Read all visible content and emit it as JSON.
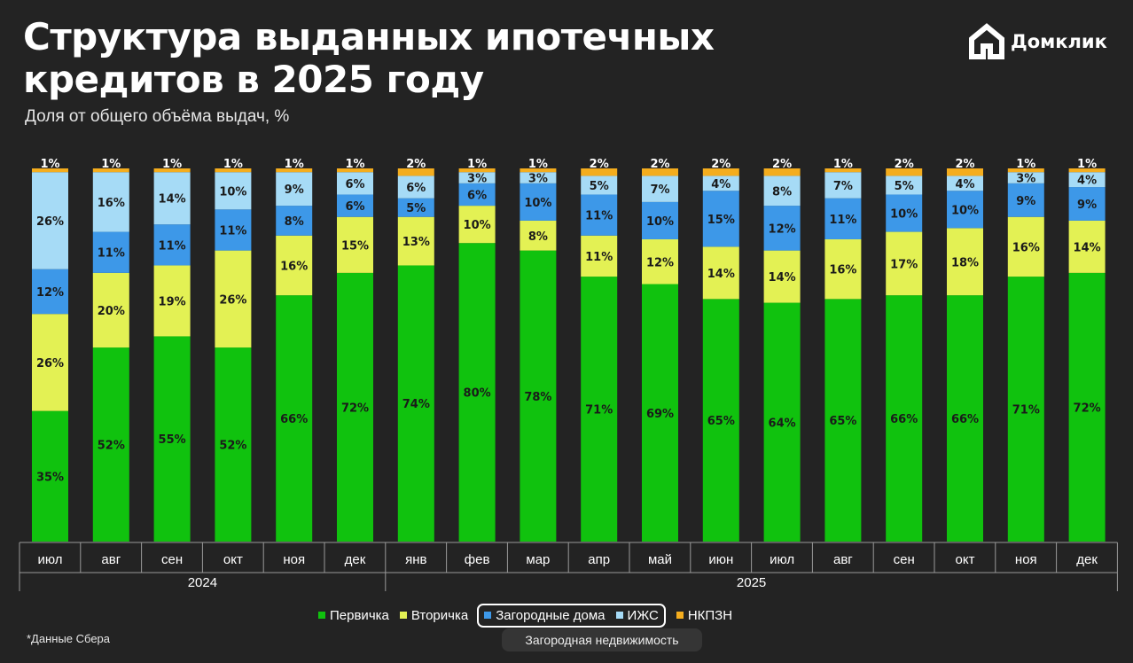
{
  "header": {
    "title": "Структура выданных ипотечных кредитов в 2025 году",
    "subtitle": "Доля от общего объёма выдач, %"
  },
  "logo": {
    "text": "Домклик",
    "icon": "house-logo-icon"
  },
  "colors": {
    "background": "#232323",
    "primary": "#10c20e",
    "secondary": "#e3f154",
    "country": "#3d98e8",
    "izhs": "#a6dbf6",
    "nkpzn": "#f4ad1e"
  },
  "chart_data": {
    "type": "bar",
    "stacked": true,
    "title": "Структура выданных ипотечных кредитов в 2025 году",
    "subtitle": "Доля от общего объёма выдач, %",
    "categories": [
      "июл",
      "авг",
      "сен",
      "окт",
      "ноя",
      "дек",
      "янв",
      "фев",
      "мар",
      "апр",
      "май",
      "июн",
      "июл",
      "авг",
      "сен",
      "окт",
      "ноя",
      "дек"
    ],
    "years": [
      {
        "label": "2024",
        "start": 0,
        "count": 6
      },
      {
        "label": "2025",
        "start": 6,
        "count": 12
      }
    ],
    "series": [
      {
        "name": "Первичка",
        "key": "primary",
        "values": [
          35,
          52,
          55,
          52,
          66,
          72,
          74,
          80,
          78,
          71,
          69,
          65,
          64,
          65,
          66,
          66,
          71,
          72
        ]
      },
      {
        "name": "Вторичка",
        "key": "secondary",
        "values": [
          26,
          20,
          19,
          26,
          16,
          15,
          13,
          10,
          8,
          11,
          12,
          14,
          14,
          16,
          17,
          18,
          16,
          14
        ]
      },
      {
        "name": "Загородные дома",
        "key": "country",
        "values": [
          12,
          11,
          11,
          11,
          8,
          6,
          5,
          6,
          10,
          11,
          10,
          15,
          12,
          11,
          10,
          10,
          9,
          9
        ]
      },
      {
        "name": "ИЖС",
        "key": "izhs",
        "values": [
          26,
          16,
          14,
          10,
          9,
          6,
          6,
          3,
          3,
          5,
          7,
          4,
          8,
          7,
          5,
          4,
          3,
          4
        ]
      },
      {
        "name": "НКПЗН",
        "key": "nkpzn",
        "values": [
          1,
          1,
          1,
          1,
          1,
          1,
          2,
          1,
          1,
          2,
          2,
          2,
          2,
          1,
          2,
          2,
          1,
          1
        ]
      }
    ],
    "value_suffix": "%",
    "ylim": [
      0,
      100
    ],
    "grid": false,
    "legend_position": "bottom"
  },
  "legend": {
    "items": [
      "Первичка",
      "Вторичка",
      "Загородные дома",
      "ИЖС",
      "НКПЗН"
    ],
    "group_label": "Загородная недвижимость"
  },
  "footer": {
    "source": "*Данные Сбера"
  }
}
